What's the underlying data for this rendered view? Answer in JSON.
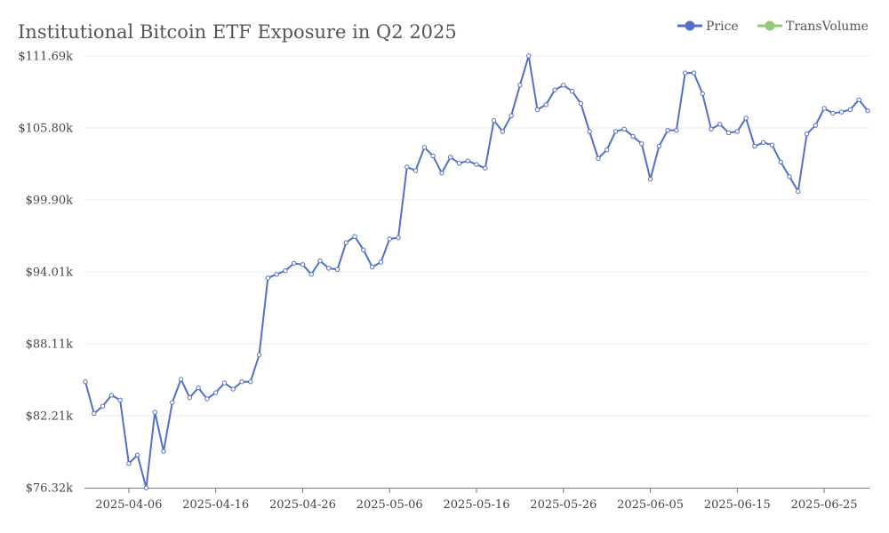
{
  "chart_data": {
    "type": "line",
    "title": "Institutional Bitcoin ETF Exposure in Q2 2025",
    "xlabel": "",
    "ylabel": "",
    "ylim": [
      76.32,
      111.69
    ],
    "y_ticks": [
      "$76.32k",
      "$82.21k",
      "$88.11k",
      "$94.01k",
      "$99.90k",
      "$105.80k",
      "$111.69k"
    ],
    "x_start": "2025-04-01",
    "x_ticks": [
      "2025-04-06",
      "2025-04-16",
      "2025-04-26",
      "2025-05-06",
      "2025-05-16",
      "2025-05-26",
      "2025-06-05",
      "2025-06-15",
      "2025-06-25"
    ],
    "grid": true,
    "legend": [
      {
        "name": "Price",
        "color": "#5470c6"
      },
      {
        "name": "TransVolume",
        "color": "#91cc75"
      }
    ],
    "series": [
      {
        "name": "Price",
        "color": "#5470c6",
        "values": [
          85.0,
          82.4,
          83.0,
          83.9,
          83.5,
          78.3,
          79.0,
          76.3,
          82.5,
          79.3,
          83.3,
          85.2,
          83.7,
          84.5,
          83.6,
          84.1,
          84.9,
          84.4,
          85.0,
          85.0,
          87.2,
          93.5,
          93.8,
          94.1,
          94.7,
          94.6,
          93.8,
          94.9,
          94.3,
          94.2,
          96.4,
          96.9,
          95.8,
          94.4,
          94.8,
          96.7,
          96.8,
          102.6,
          102.3,
          104.2,
          103.5,
          102.1,
          103.4,
          102.9,
          103.1,
          102.8,
          102.5,
          106.4,
          105.5,
          106.8,
          109.3,
          111.7,
          107.3,
          107.7,
          108.9,
          109.3,
          108.8,
          107.8,
          105.5,
          103.3,
          104.0,
          105.5,
          105.7,
          105.1,
          104.5,
          101.6,
          104.3,
          105.6,
          105.6,
          110.3,
          110.3,
          108.6,
          105.7,
          106.1,
          105.4,
          105.5,
          106.6,
          104.3,
          104.6,
          104.4,
          103.0,
          101.8,
          100.6,
          105.3,
          106.0,
          107.4,
          107.0,
          107.1,
          107.3,
          108.1,
          107.2
        ]
      }
    ]
  }
}
